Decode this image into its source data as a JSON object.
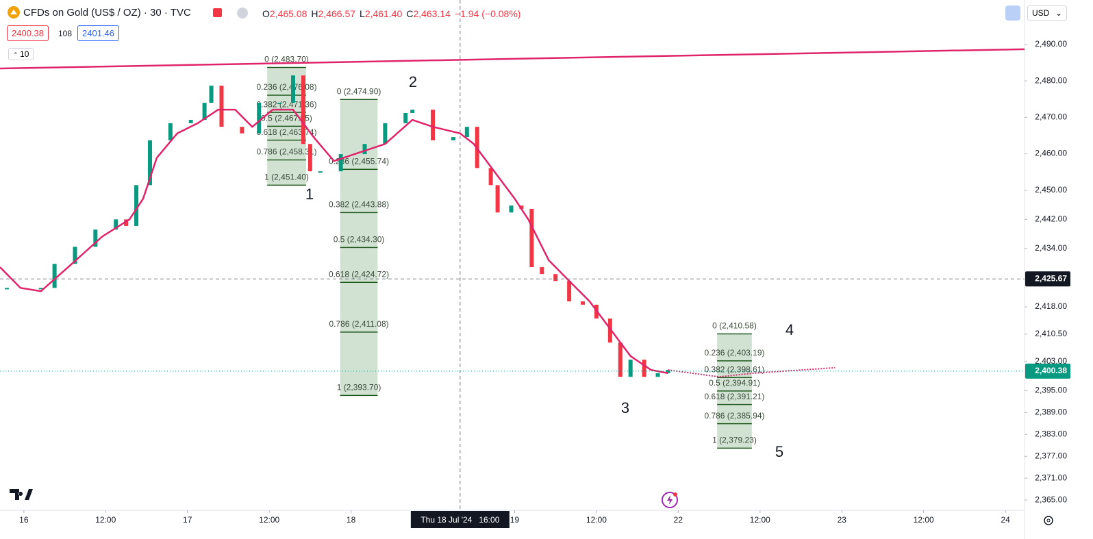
{
  "header": {
    "title": "CFDs on Gold (US$ / OZ) · 30 · TVC",
    "ohlc": [
      {
        "key": "O",
        "value": "2,465.08"
      },
      {
        "key": "H",
        "value": "2,466.57"
      },
      {
        "key": "L",
        "value": "2,461.40"
      },
      {
        "key": "C",
        "value": "2,463.14"
      }
    ],
    "change": "−1.94 (−0.08%)",
    "bid": "2400.38",
    "spread": "108",
    "ask": "2401.46",
    "indicators": "10",
    "currency": "USD"
  },
  "chart_data": {
    "type": "candlestick",
    "xlim": [
      -3.5,
      146.8
    ],
    "ylim": [
      2362.2,
      2502.2
    ],
    "grid": false,
    "xticks": [
      {
        "value": 0,
        "label": "16"
      },
      {
        "value": 12,
        "label": "12:00"
      },
      {
        "value": 24,
        "label": "17"
      },
      {
        "value": 36,
        "label": "12:00"
      },
      {
        "value": 48,
        "label": "18"
      },
      {
        "value": 72,
        "label": "19"
      },
      {
        "value": 84,
        "label": "12:00"
      },
      {
        "value": 96,
        "label": "22"
      },
      {
        "value": 108,
        "label": "12:00"
      },
      {
        "value": 120,
        "label": "23"
      },
      {
        "value": 132,
        "label": "12:00"
      },
      {
        "value": 144,
        "label": "24"
      }
    ],
    "yticks": [
      {
        "value": 2490,
        "label": "2,490.00"
      },
      {
        "value": 2480,
        "label": "2,480.00"
      },
      {
        "value": 2470,
        "label": "2,470.00"
      },
      {
        "value": 2460,
        "label": "2,460.00"
      },
      {
        "value": 2450,
        "label": "2,450.00"
      },
      {
        "value": 2442,
        "label": "2,442.00"
      },
      {
        "value": 2434,
        "label": "2,434.00"
      },
      {
        "value": 2418,
        "label": "2,418.00"
      },
      {
        "value": 2410.5,
        "label": "2,410.50"
      },
      {
        "value": 2403,
        "label": "2,403.00"
      },
      {
        "value": 2395,
        "label": "2,395.00"
      },
      {
        "value": 2389,
        "label": "2,389.00"
      },
      {
        "value": 2383,
        "label": "2,383.00"
      },
      {
        "value": 2377,
        "label": "2,377.00"
      },
      {
        "value": 2371,
        "label": "2,371.00"
      },
      {
        "value": 2365,
        "label": "2,365.00"
      }
    ],
    "up_color": "#089981",
    "down_color": "#f23645",
    "series": [
      {
        "kind": "candles",
        "x": [
          -2.5,
          2.5,
          4.5,
          7.5,
          10.5,
          13.5,
          15,
          16.5,
          18.5,
          21.5,
          24.5,
          26.5,
          27.5,
          29,
          32,
          34.5,
          37.5,
          39.5,
          41,
          42,
          43.5,
          46.5,
          50,
          53,
          56,
          57,
          60,
          63,
          65,
          66.5,
          68.5,
          69.5,
          71.5,
          73,
          74.5,
          76,
          78,
          80,
          82,
          84,
          86,
          87.5,
          89,
          91,
          93,
          94.5
        ],
        "values": [
          2423.2,
          2423.2,
          2429.8,
          2434.5,
          2439.2,
          2442.0,
          2440.2,
          2451.4,
          2463.7,
          2468.4,
          2469.3,
          2474.0,
          2478.7,
          2467.4,
          2465.6,
          2474.0,
          2474.0,
          2481.5,
          2462.7,
          2455.2,
          2455.2,
          2459.9,
          2462.7,
          2468.4,
          2471.2,
          2472.1,
          2463.7,
          2464.6,
          2467.4,
          2456.1,
          2451.4,
          2443.9,
          2445.8,
          2444.9,
          2428.9,
          2427.0,
          2425.1,
          2419.5,
          2418.6,
          2414.8,
          2408.2,
          2398.8,
          2403.5,
          2398.8,
          2399.8,
          2400.7
        ]
      },
      {
        "kind": "line",
        "color": "#e0246a",
        "x": [
          -3.5,
          -0.5,
          2.5,
          6.5,
          11.5,
          15.5,
          17.5,
          19.5,
          22.5,
          25.5,
          28.5,
          31,
          33.5,
          36.5,
          39.5,
          42.5,
          45.5,
          48.5,
          53,
          57,
          60,
          64,
          66,
          69,
          72,
          74,
          77,
          80,
          83,
          86,
          89,
          92,
          94.5
        ],
        "values": [
          2428.9,
          2423.2,
          2422.3,
          2428.9,
          2437.3,
          2442.0,
          2447.7,
          2458.9,
          2465.6,
          2468.4,
          2472.1,
          2472.1,
          2467.4,
          2472.1,
          2472.1,
          2464.6,
          2458.0,
          2459.9,
          2462.7,
          2469.3,
          2467.4,
          2465.6,
          2462.7,
          2455.2,
          2447.7,
          2442.0,
          2430.8,
          2425.1,
          2419.5,
          2412.0,
          2404.5,
          2400.7,
          2399.8
        ]
      },
      {
        "kind": "dotted",
        "color": "#e0246a",
        "x": [
          94.5,
          102,
          107,
          119
        ],
        "values": [
          2400.7,
          2398.8,
          2399.8,
          2401.3
        ]
      },
      {
        "kind": "line",
        "color": "#e0246a",
        "x": [
          -3.5,
          146.8
        ],
        "values": [
          2483.4,
          2488.7
        ]
      }
    ],
    "fibs": [
      {
        "x": [
          35.7,
          41.4
        ],
        "levels": [
          {
            "value": 2483.7,
            "label": "0 (2,483.70)"
          },
          {
            "value": 2476.08,
            "label": "0.236 (2,476.08)"
          },
          {
            "value": 2471.36,
            "label": "0.382 (2,471.36)"
          },
          {
            "value": 2467.55,
            "label": "0.5 (2,467.55)"
          },
          {
            "value": 2463.74,
            "label": "0.618 (2,463.74)"
          },
          {
            "value": 2458.31,
            "label": "0.786 (2,458.31)"
          },
          {
            "value": 2451.4,
            "label": "1 (2,451.40)"
          }
        ]
      },
      {
        "x": [
          46.4,
          51.9
        ],
        "levels": [
          {
            "value": 2474.9,
            "label": "0 (2,474.90)"
          },
          {
            "value": 2455.74,
            "label": "0.236 (2,455.74)"
          },
          {
            "value": 2443.88,
            "label": "0.382 (2,443.88)"
          },
          {
            "value": 2434.3,
            "label": "0.5 (2,434.30)"
          },
          {
            "value": 2424.72,
            "label": "0.618 (2,424.72)"
          },
          {
            "value": 2411.08,
            "label": "0.786 (2,411.08)"
          },
          {
            "value": 2393.7,
            "label": "1 (2,393.70)"
          }
        ]
      },
      {
        "x": [
          101.7,
          106.8
        ],
        "levels": [
          {
            "value": 2410.58,
            "label": "0 (2,410.58)"
          },
          {
            "value": 2403.19,
            "label": "0.236 (2,403.19)"
          },
          {
            "value": 2398.61,
            "label": "0.382 (2,398.61)"
          },
          {
            "value": 2394.91,
            "label": "0.5 (2,394.91)"
          },
          {
            "value": 2391.21,
            "label": "0.618 (2,391.21)"
          },
          {
            "value": 2385.94,
            "label": "0.786 (2,385.94)"
          },
          {
            "value": 2379.23,
            "label": "1 (2,379.23)"
          }
        ]
      }
    ],
    "wave_labels": [
      "1",
      "2",
      "3",
      "4",
      "5"
    ],
    "crosshair": {
      "x": 64,
      "x_label": "Thu 18 Jul '24   16:00",
      "y": 2425.67,
      "y_label": "2,425.67"
    },
    "last_price": {
      "value": 2400.38,
      "label": "2,400.38"
    }
  }
}
